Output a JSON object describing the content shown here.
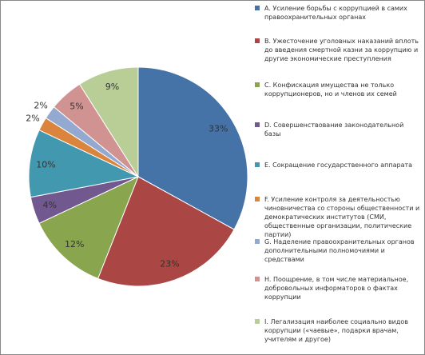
{
  "chart_data": {
    "type": "pie",
    "categories": [
      "A. Усиление борьбы с коррупцией в самих правоохранительных органах",
      "B. Ужесточение уголовных наказаний вплоть до введения смертной казни за коррупцию и другие экономические преступления",
      "C. Конфискация имущества не только коррупционеров, но и членов их семей",
      "D. Совершенствование законодательной базы",
      "E. Сокращение государственного аппарата",
      "F. Усиление контроля за деятельностью чиновничества со стороны общественности и демократических институтов (СМИ, общественные организации, политические партии)",
      "G. Наделение правоохранительных органов дополнительными полномочиями и средствами",
      "H. Поощрение, в том числе материальное, добровольных информаторов о фактах коррупции",
      "I. Легализация наиболее социально видов коррупции («чаевые», подарки врачам, учителям и другое)"
    ],
    "values": [
      33,
      23,
      12,
      4,
      10,
      2,
      2,
      5,
      9
    ],
    "value_labels": [
      "33%",
      "23%",
      "12%",
      "4%",
      "10%",
      "2%",
      "2%",
      "5%",
      "9%"
    ],
    "colors": [
      "#4572a7",
      "#aa4643",
      "#89a54e",
      "#71588f",
      "#4198af",
      "#db843d",
      "#93a9cf",
      "#d19392",
      "#b9cd96"
    ]
  }
}
